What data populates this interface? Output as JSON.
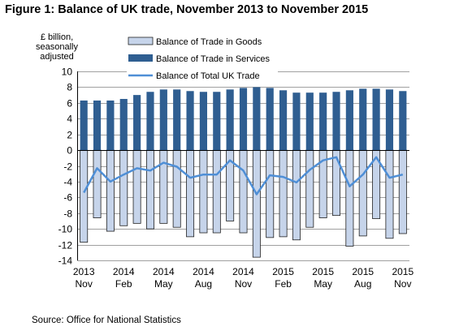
{
  "title": "Figure 1: Balance of UK trade, November 2013 to November 2015",
  "source": "Source: Office for National Statistics",
  "colors": {
    "goods": "#c6d4ea",
    "goods_border": "#222222",
    "services": "#2f5e91",
    "total_line": "#4f8fd6",
    "grid": "#a0a0a0",
    "axis": "#000000"
  },
  "chart_data": {
    "type": "bar",
    "title": "Figure 1: Balance of UK trade, November 2013 to November 2015",
    "ylabel": "£ billion, seasonally adjusted",
    "xlabel": "",
    "ylim": [
      -14,
      10
    ],
    "yticks": [
      10,
      8,
      6,
      4,
      2,
      0,
      -2,
      -4,
      -6,
      -8,
      -10,
      -12,
      -14
    ],
    "grid": true,
    "legend_position": "top",
    "categories": [
      "2013 Nov",
      "2013 Dec",
      "2014 Jan",
      "2014 Feb",
      "2014 Mar",
      "2014 Apr",
      "2014 May",
      "2014 Jun",
      "2014 Jul",
      "2014 Aug",
      "2014 Sep",
      "2014 Oct",
      "2014 Nov",
      "2014 Dec",
      "2015 Jan",
      "2015 Feb",
      "2015 Mar",
      "2015 Apr",
      "2015 May",
      "2015 Jun",
      "2015 Jul",
      "2015 Aug",
      "2015 Sep",
      "2015 Oct",
      "2015 Nov"
    ],
    "x_tick_labels": [
      {
        "index": 0,
        "year": "2013",
        "month": "Nov"
      },
      {
        "index": 3,
        "year": "2014",
        "month": "Feb"
      },
      {
        "index": 6,
        "year": "2014",
        "month": "May"
      },
      {
        "index": 9,
        "year": "2014",
        "month": "Aug"
      },
      {
        "index": 12,
        "year": "2014",
        "month": "Nov"
      },
      {
        "index": 15,
        "year": "2015",
        "month": "Feb"
      },
      {
        "index": 18,
        "year": "2015",
        "month": "May"
      },
      {
        "index": 21,
        "year": "2015",
        "month": "Aug"
      },
      {
        "index": 24,
        "year": "2015",
        "month": "Nov"
      }
    ],
    "series": [
      {
        "name": "Balance of Trade in Goods",
        "kind": "bar",
        "values": [
          -11.7,
          -8.6,
          -10.3,
          -9.6,
          -9.3,
          -10.0,
          -9.3,
          -9.8,
          -11.0,
          -10.5,
          -10.5,
          -9.0,
          -10.5,
          -13.6,
          -11.1,
          -11.0,
          -11.4,
          -9.8,
          -8.6,
          -8.3,
          -12.2,
          -10.9,
          -8.7,
          -11.2,
          -10.6
        ]
      },
      {
        "name": "Balance of Trade in Services",
        "kind": "bar",
        "values": [
          6.3,
          6.3,
          6.3,
          6.5,
          7.0,
          7.4,
          7.7,
          7.7,
          7.5,
          7.4,
          7.4,
          7.7,
          7.9,
          8.0,
          7.9,
          7.6,
          7.3,
          7.3,
          7.3,
          7.4,
          7.6,
          7.8,
          7.8,
          7.7,
          7.5
        ]
      },
      {
        "name": "Balance of Total UK Trade",
        "kind": "line",
        "values": [
          -5.4,
          -2.3,
          -4.0,
          -3.1,
          -2.3,
          -2.6,
          -1.6,
          -2.1,
          -3.5,
          -3.1,
          -3.1,
          -1.3,
          -2.6,
          -5.6,
          -3.2,
          -3.4,
          -4.1,
          -2.5,
          -1.3,
          -0.9,
          -4.6,
          -3.1,
          -0.9,
          -3.5,
          -3.1
        ]
      }
    ]
  }
}
